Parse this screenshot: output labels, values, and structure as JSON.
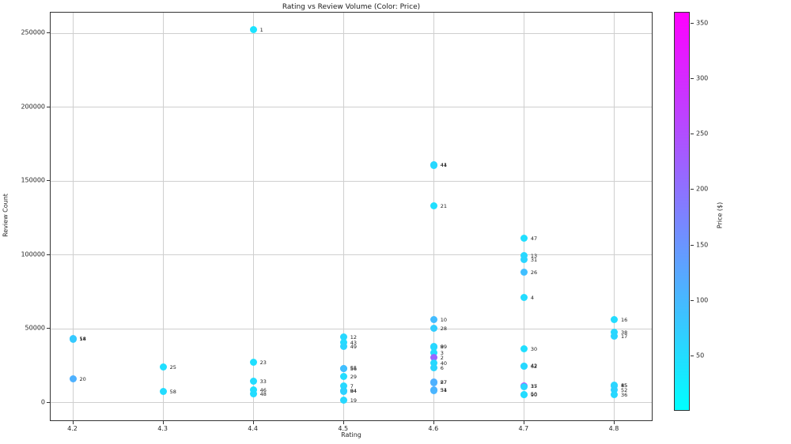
{
  "title": "Rating vs Review Volume (Color: Price)",
  "chart_data": {
    "type": "scatter",
    "title": "Rating vs Review Volume (Color: Price)",
    "xlabel": "Rating",
    "ylabel": "Review Count",
    "xlim": [
      4.175,
      4.843
    ],
    "ylim": [
      -13000,
      264000
    ],
    "x_ticks": [
      4.2,
      4.3,
      4.4,
      4.5,
      4.6,
      4.7,
      4.8
    ],
    "y_ticks": [
      0,
      50000,
      100000,
      150000,
      200000,
      250000
    ],
    "grid": true,
    "colormap": "cool",
    "colorbar": {
      "label": "Price ($)",
      "min": 0,
      "max": 360,
      "ticks": [
        50,
        100,
        150,
        200,
        250,
        300,
        350
      ],
      "bottom_color": "#00ffff",
      "top_color": "#ff00ff"
    },
    "points": [
      {
        "x": 4.2,
        "y": 43300,
        "price": 80,
        "label": "54"
      },
      {
        "x": 4.2,
        "y": 43000,
        "price": 75,
        "label": "18"
      },
      {
        "x": 4.2,
        "y": 16000,
        "price": 110,
        "label": "20"
      },
      {
        "x": 4.3,
        "y": 24000,
        "price": 45,
        "label": "25"
      },
      {
        "x": 4.3,
        "y": 7500,
        "price": 50,
        "label": "58"
      },
      {
        "x": 4.4,
        "y": 252500,
        "price": 40,
        "label": "1"
      },
      {
        "x": 4.4,
        "y": 27300,
        "price": 45,
        "label": "23"
      },
      {
        "x": 4.4,
        "y": 14400,
        "price": 50,
        "label": "33"
      },
      {
        "x": 4.4,
        "y": 8550,
        "price": 45,
        "label": "46"
      },
      {
        "x": 4.4,
        "y": 5900,
        "price": 50,
        "label": "48"
      },
      {
        "x": 4.5,
        "y": 44400,
        "price": 55,
        "label": "12"
      },
      {
        "x": 4.5,
        "y": 40600,
        "price": 50,
        "label": "43"
      },
      {
        "x": 4.5,
        "y": 38000,
        "price": 60,
        "label": "49"
      },
      {
        "x": 4.5,
        "y": 23200,
        "price": 95,
        "label": "55"
      },
      {
        "x": 4.5,
        "y": 22900,
        "price": 90,
        "label": "56"
      },
      {
        "x": 4.5,
        "y": 17650,
        "price": 50,
        "label": "29"
      },
      {
        "x": 4.5,
        "y": 11200,
        "price": 55,
        "label": "7"
      },
      {
        "x": 4.5,
        "y": 8000,
        "price": 60,
        "label": "84"
      },
      {
        "x": 4.5,
        "y": 7800,
        "price": 65,
        "label": "94"
      },
      {
        "x": 4.5,
        "y": 1600,
        "price": 55,
        "label": "19"
      },
      {
        "x": 4.6,
        "y": 161000,
        "price": 60,
        "label": "44"
      },
      {
        "x": 4.6,
        "y": 160600,
        "price": 55,
        "label": "41"
      },
      {
        "x": 4.6,
        "y": 133000,
        "price": 45,
        "label": "21"
      },
      {
        "x": 4.6,
        "y": 56200,
        "price": 95,
        "label": "10"
      },
      {
        "x": 4.6,
        "y": 50300,
        "price": 70,
        "label": "28"
      },
      {
        "x": 4.6,
        "y": 38000,
        "price": 60,
        "label": "9"
      },
      {
        "x": 4.6,
        "y": 37700,
        "price": 55,
        "label": "89"
      },
      {
        "x": 4.6,
        "y": 33700,
        "price": 50,
        "label": "3"
      },
      {
        "x": 4.6,
        "y": 30500,
        "price": 215,
        "label": "2"
      },
      {
        "x": 4.6,
        "y": 26750,
        "price": 55,
        "label": "40"
      },
      {
        "x": 4.6,
        "y": 23500,
        "price": 60,
        "label": "6"
      },
      {
        "x": 4.6,
        "y": 13800,
        "price": 115,
        "label": "27"
      },
      {
        "x": 4.6,
        "y": 13500,
        "price": 110,
        "label": "87"
      },
      {
        "x": 4.6,
        "y": 8600,
        "price": 115,
        "label": "51"
      },
      {
        "x": 4.6,
        "y": 8300,
        "price": 105,
        "label": "34"
      },
      {
        "x": 4.7,
        "y": 111300,
        "price": 45,
        "label": "47"
      },
      {
        "x": 4.7,
        "y": 99500,
        "price": 55,
        "label": "13"
      },
      {
        "x": 4.7,
        "y": 96800,
        "price": 60,
        "label": "31"
      },
      {
        "x": 4.7,
        "y": 88300,
        "price": 90,
        "label": "26"
      },
      {
        "x": 4.7,
        "y": 71100,
        "price": 50,
        "label": "4"
      },
      {
        "x": 4.7,
        "y": 36400,
        "price": 45,
        "label": "30"
      },
      {
        "x": 4.7,
        "y": 24800,
        "price": 50,
        "label": "42"
      },
      {
        "x": 4.7,
        "y": 24500,
        "price": 55,
        "label": "62"
      },
      {
        "x": 4.7,
        "y": 11300,
        "price": 250,
        "label": "15"
      },
      {
        "x": 4.7,
        "y": 11000,
        "price": 60,
        "label": "37"
      },
      {
        "x": 4.7,
        "y": 5600,
        "price": 55,
        "label": "50"
      },
      {
        "x": 4.7,
        "y": 5300,
        "price": 50,
        "label": "90"
      },
      {
        "x": 4.8,
        "y": 56200,
        "price": 50,
        "label": "16"
      },
      {
        "x": 4.8,
        "y": 47600,
        "price": 55,
        "label": "38"
      },
      {
        "x": 4.8,
        "y": 44900,
        "price": 60,
        "label": "17"
      },
      {
        "x": 4.8,
        "y": 11800,
        "price": 55,
        "label": "45"
      },
      {
        "x": 4.8,
        "y": 11500,
        "price": 60,
        "label": "85"
      },
      {
        "x": 4.8,
        "y": 8550,
        "price": 65,
        "label": "52"
      },
      {
        "x": 4.8,
        "y": 5350,
        "price": 55,
        "label": "36"
      }
    ]
  }
}
